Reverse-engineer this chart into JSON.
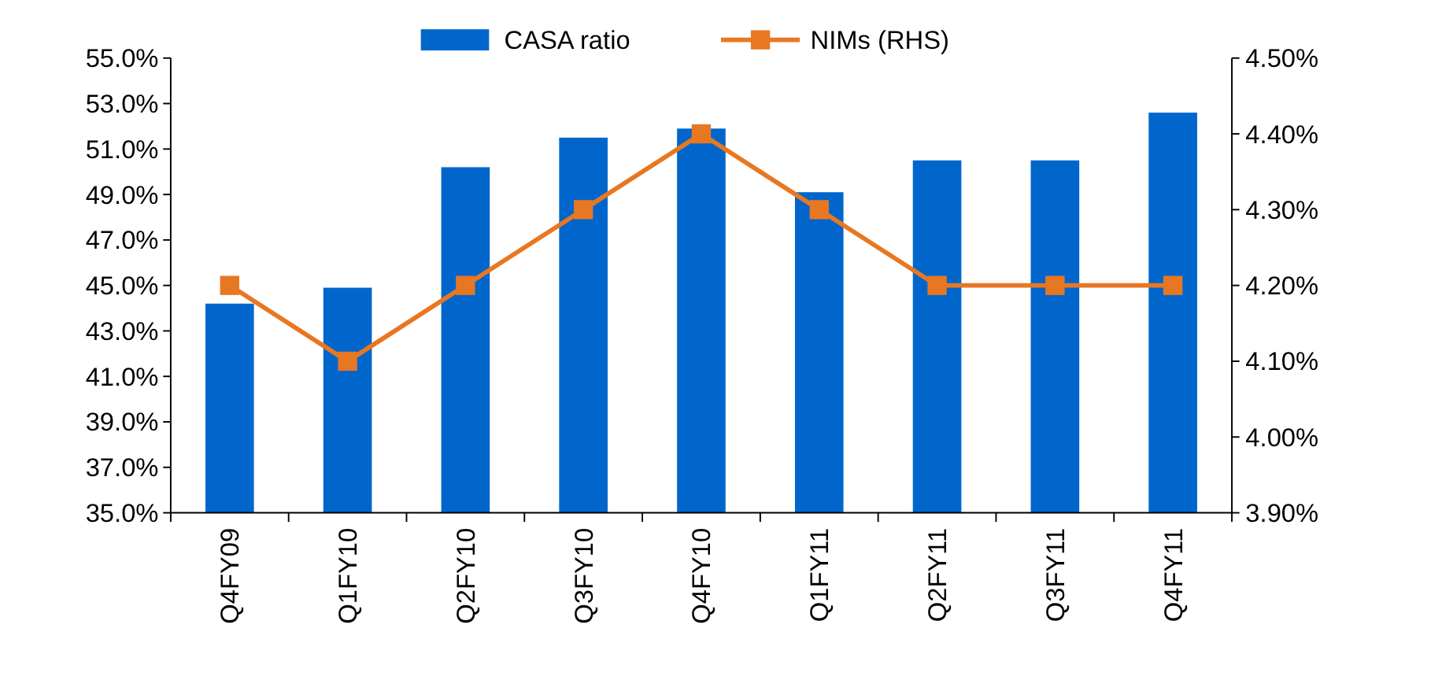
{
  "chart_data": {
    "type": "bar",
    "categories": [
      "Q4FY09",
      "Q1FY10",
      "Q2FY10",
      "Q3FY10",
      "Q4FY10",
      "Q1FY11",
      "Q2FY11",
      "Q3FY11",
      "Q4FY11"
    ],
    "series": [
      {
        "name": "CASA ratio",
        "color": "#0066cc",
        "values": [
          44.2,
          44.9,
          50.2,
          51.5,
          51.9,
          49.1,
          50.5,
          50.5,
          52.6
        ]
      },
      {
        "name": "NIMs (RHS)",
        "type": "line",
        "axis": "y2",
        "color": "#e87722",
        "values": [
          4.2,
          4.1,
          4.2,
          4.3,
          4.4,
          4.3,
          4.2,
          4.2,
          4.2
        ]
      }
    ],
    "ylim": [
      35,
      55
    ],
    "yticks": [
      {
        "value": 35,
        "label": "35.0%"
      },
      {
        "value": 37,
        "label": "37.0%"
      },
      {
        "value": 39,
        "label": "39.0%"
      },
      {
        "value": 41,
        "label": "41.0%"
      },
      {
        "value": 43,
        "label": "43.0%"
      },
      {
        "value": 45,
        "label": "45.0%"
      },
      {
        "value": 47,
        "label": "47.0%"
      },
      {
        "value": 49,
        "label": "49.0%"
      },
      {
        "value": 51,
        "label": "51.0%"
      },
      {
        "value": 53,
        "label": "53.0%"
      },
      {
        "value": 55,
        "label": "55.0%"
      }
    ],
    "y2lim": [
      3.9,
      4.5
    ],
    "y2ticks": [
      {
        "value": 3.9,
        "label": "3.90%"
      },
      {
        "value": 4.0,
        "label": "4.00%"
      },
      {
        "value": 4.1,
        "label": "4.10%"
      },
      {
        "value": 4.2,
        "label": "4.20%"
      },
      {
        "value": 4.3,
        "label": "4.30%"
      },
      {
        "value": 4.4,
        "label": "4.40%"
      },
      {
        "value": 4.5,
        "label": "4.50%"
      }
    ],
    "marker": "square",
    "legend": "top",
    "grid": false
  }
}
